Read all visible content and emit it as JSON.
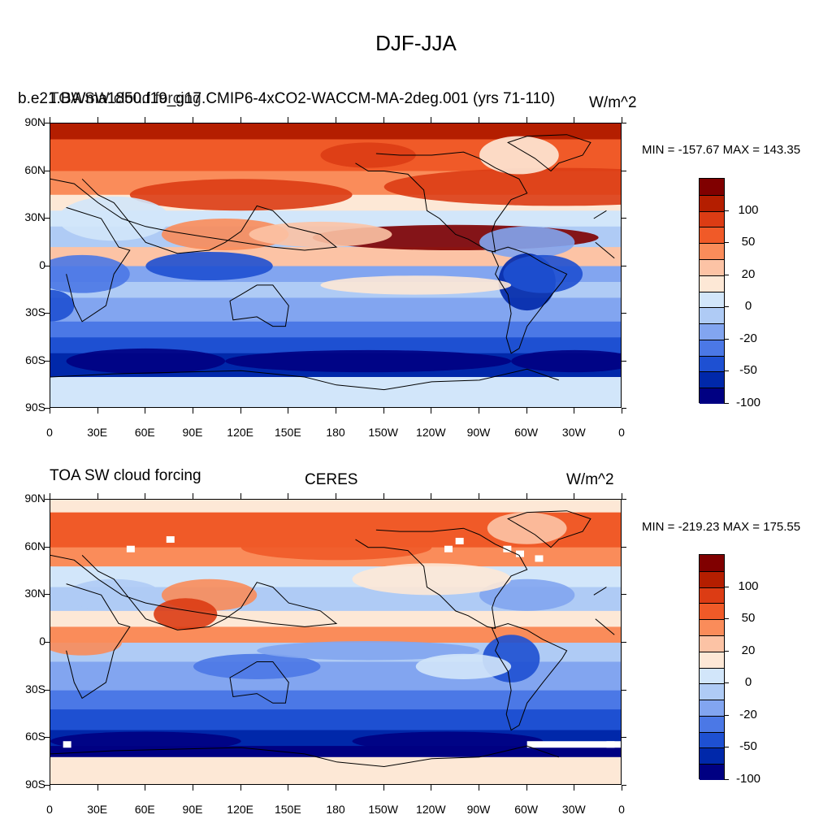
{
  "main_title": "DJF-JJA",
  "panels": [
    {
      "left_title": "b.e21.BWma1850.f19_g17.CMIP6-4xCO2-WACCM-MA-2deg.001 (yrs 71-110)",
      "overlay_title": "TOA SW cloud forcing",
      "units": "W/m^2",
      "minmax": "MIN = -157.67 MAX = 143.35"
    },
    {
      "left_title": "TOA SW cloud forcing",
      "center_title": "CERES",
      "units": "W/m^2",
      "minmax": "MIN = -219.23 MAX = 175.55"
    }
  ],
  "lat_labels": [
    "90N",
    "60N",
    "30N",
    "0",
    "30S",
    "60S",
    "90S"
  ],
  "lon_labels": [
    "0",
    "30E",
    "60E",
    "90E",
    "120E",
    "150E",
    "180",
    "150W",
    "120W",
    "90W",
    "60W",
    "30W",
    "0"
  ],
  "colorbar": {
    "labels": [
      "100",
      "50",
      "20",
      "0",
      "-20",
      "-50",
      "-100"
    ],
    "colors": [
      "#800000",
      "#b41e00",
      "#dc3c14",
      "#f05a28",
      "#fa8c5a",
      "#fcc3a5",
      "#fde8d6",
      "#d2e6fa",
      "#afcbf5",
      "#82a5f0",
      "#4b78e6",
      "#1e50d2",
      "#0028aa",
      "#000082"
    ]
  },
  "chart_data": {
    "type": "heatmap",
    "title": "DJF-JJA",
    "variable": "TOA SW cloud forcing",
    "units": "W/m^2",
    "contour_levels": [
      -100,
      -50,
      -20,
      0,
      20,
      50,
      100
    ],
    "panels": [
      {
        "name": "b.e21.BWma1850.f19_g17.CMIP6-4xCO2-WACCM-MA-2deg.001 (yrs 71-110)",
        "min": -157.67,
        "max": 143.35
      },
      {
        "name": "CERES",
        "min": -219.23,
        "max": 175.55
      }
    ],
    "xlim": [
      "0",
      "0"
    ],
    "ylim": [
      "90S",
      "90N"
    ]
  }
}
